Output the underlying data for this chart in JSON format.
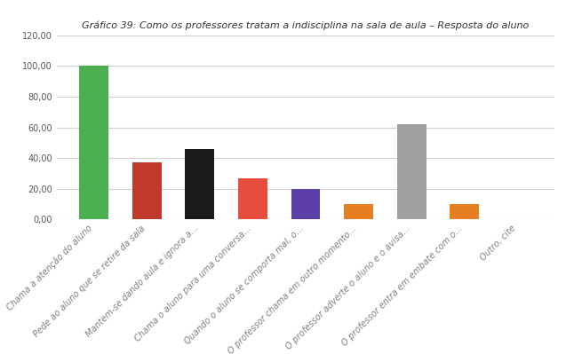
{
  "title": "Gráfico 39: Como os professores tratam a indisciplina na sala de aula – Resposta do aluno",
  "categories": [
    "Chama a atenção do aluno",
    "Pede ao aluno que se retire da sala",
    "Mantem-se dando aula e ignora a...",
    "Chama o aluno para uma conversa...",
    "Quando o aluno se comporta mal, o...",
    "O professor chama em outro momento...",
    "O professor adverte o aluno e o avisa...",
    "O professor entra em embate com o...",
    "Outro, cite"
  ],
  "values": [
    100.0,
    37.0,
    46.0,
    27.0,
    20.0,
    10.0,
    62.0,
    10.0,
    0.0
  ],
  "colors": [
    "#4CAF50",
    "#C0392B",
    "#1a1a1a",
    "#E74C3C",
    "#5B3FA6",
    "#E67E22",
    "#A0A0A0",
    "#E67E22",
    "#CCCCCC"
  ],
  "ylim": [
    0,
    120
  ],
  "yticks": [
    0,
    20,
    40,
    60,
    80,
    100,
    120
  ],
  "ytick_labels": [
    "0,00",
    "20,00",
    "40,00",
    "60,00",
    "80,00",
    "100,00",
    "120,00"
  ],
  "title_fontsize": 8,
  "tick_fontsize": 7,
  "xtick_fontsize": 7,
  "bar_width": 0.55,
  "grid_color": "#D0D0D0",
  "background_color": "#FFFFFF",
  "xtick_color": "#808080"
}
